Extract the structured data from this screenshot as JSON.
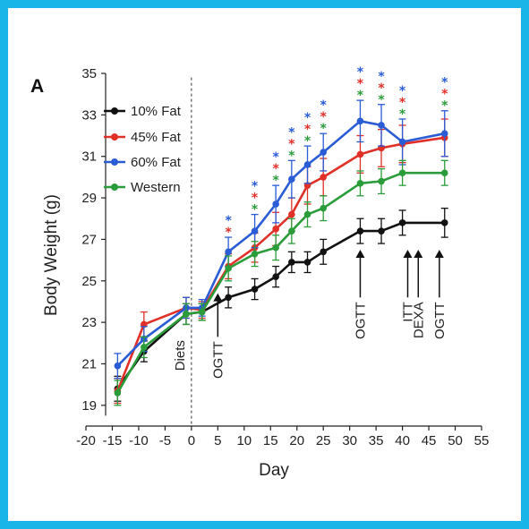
{
  "panel_label": "A",
  "chart_data": {
    "type": "line",
    "title": "",
    "xlabel": "Day",
    "ylabel": "Body Weight (g)",
    "xlim": [
      -20,
      55
    ],
    "ylim": [
      18,
      35
    ],
    "xticks": [
      -20,
      -15,
      -10,
      -5,
      0,
      5,
      10,
      15,
      20,
      25,
      30,
      35,
      40,
      45,
      50,
      55
    ],
    "yticks": [
      19,
      21,
      23,
      25,
      27,
      29,
      31,
      33,
      35
    ],
    "grid": false,
    "legend_position": "top-left",
    "series": [
      {
        "name": "10% Fat",
        "color": "#111111",
        "x": [
          -14,
          -9,
          -1,
          2,
          7,
          12,
          16,
          19,
          22,
          25,
          32,
          36,
          40,
          48
        ],
        "y": [
          19.8,
          21.6,
          23.4,
          23.5,
          24.2,
          24.6,
          25.2,
          25.9,
          25.9,
          26.4,
          27.4,
          27.4,
          27.8,
          27.8
        ],
        "err": [
          0.6,
          0.5,
          0.5,
          0.4,
          0.5,
          0.5,
          0.5,
          0.5,
          0.5,
          0.6,
          0.6,
          0.6,
          0.6,
          0.7
        ]
      },
      {
        "name": "45% Fat",
        "color": "#e03028",
        "x": [
          -14,
          -9,
          -1,
          2,
          7,
          12,
          16,
          19,
          22,
          25,
          32,
          36,
          40,
          48
        ],
        "y": [
          19.7,
          22.9,
          23.7,
          23.6,
          25.7,
          26.6,
          27.5,
          28.2,
          29.6,
          30.0,
          31.1,
          31.4,
          31.6,
          31.9
        ],
        "err": [
          0.6,
          0.6,
          0.5,
          0.4,
          0.6,
          0.7,
          0.8,
          0.8,
          0.9,
          0.9,
          0.9,
          0.9,
          0.9,
          0.9
        ]
      },
      {
        "name": "60% Fat",
        "color": "#2a5cd6",
        "x": [
          -14,
          -9,
          -1,
          2,
          7,
          12,
          16,
          19,
          22,
          25,
          32,
          36,
          40,
          48
        ],
        "y": [
          20.9,
          22.2,
          23.7,
          23.7,
          26.4,
          27.4,
          28.7,
          29.9,
          30.6,
          31.2,
          32.7,
          32.5,
          31.7,
          32.1
        ],
        "err": [
          0.6,
          0.6,
          0.5,
          0.4,
          0.7,
          0.8,
          0.9,
          0.9,
          0.9,
          0.9,
          1.0,
          1.0,
          1.1,
          1.1
        ]
      },
      {
        "name": "Western",
        "color": "#2a9d3a",
        "x": [
          -14,
          -9,
          -1,
          2,
          7,
          12,
          16,
          19,
          22,
          25,
          32,
          36,
          40,
          48
        ],
        "y": [
          19.6,
          21.8,
          23.4,
          23.5,
          25.6,
          26.3,
          26.6,
          27.4,
          28.2,
          28.5,
          29.7,
          29.8,
          30.2,
          30.2
        ],
        "err": [
          0.6,
          0.5,
          0.5,
          0.4,
          0.6,
          0.6,
          0.6,
          0.6,
          0.6,
          0.6,
          0.6,
          0.6,
          0.6,
          0.6
        ]
      }
    ],
    "significance_stars": [
      {
        "x": 7,
        "colors": [
          "#2a5cd6",
          "#e03028"
        ]
      },
      {
        "x": 12,
        "colors": [
          "#2a5cd6",
          "#e03028",
          "#2a9d3a"
        ]
      },
      {
        "x": 16,
        "colors": [
          "#2a5cd6",
          "#e03028",
          "#2a9d3a"
        ]
      },
      {
        "x": 19,
        "colors": [
          "#2a5cd6",
          "#e03028",
          "#2a9d3a"
        ]
      },
      {
        "x": 22,
        "colors": [
          "#2a5cd6",
          "#e03028",
          "#2a9d3a"
        ]
      },
      {
        "x": 25,
        "colors": [
          "#2a5cd6",
          "#e03028",
          "#2a9d3a"
        ]
      },
      {
        "x": 32,
        "colors": [
          "#2a5cd6",
          "#e03028",
          "#2a9d3a"
        ]
      },
      {
        "x": 36,
        "colors": [
          "#2a5cd6",
          "#e03028",
          "#2a9d3a"
        ]
      },
      {
        "x": 40,
        "colors": [
          "#2a5cd6",
          "#e03028",
          "#2a9d3a"
        ]
      },
      {
        "x": 48,
        "colors": [
          "#2a5cd6",
          "#e03028",
          "#2a9d3a"
        ]
      }
    ],
    "annotations": [
      {
        "text": "Diets",
        "x": 0,
        "kind": "vline"
      },
      {
        "text": "OGTT",
        "x": 5,
        "kind": "arrow"
      },
      {
        "text": "OGTT",
        "x": 32,
        "kind": "arrow"
      },
      {
        "text": "ITT",
        "x": 41,
        "kind": "arrow"
      },
      {
        "text": "DEXA",
        "x": 43,
        "kind": "arrow"
      },
      {
        "text": "OGTT",
        "x": 47,
        "kind": "arrow"
      }
    ]
  }
}
